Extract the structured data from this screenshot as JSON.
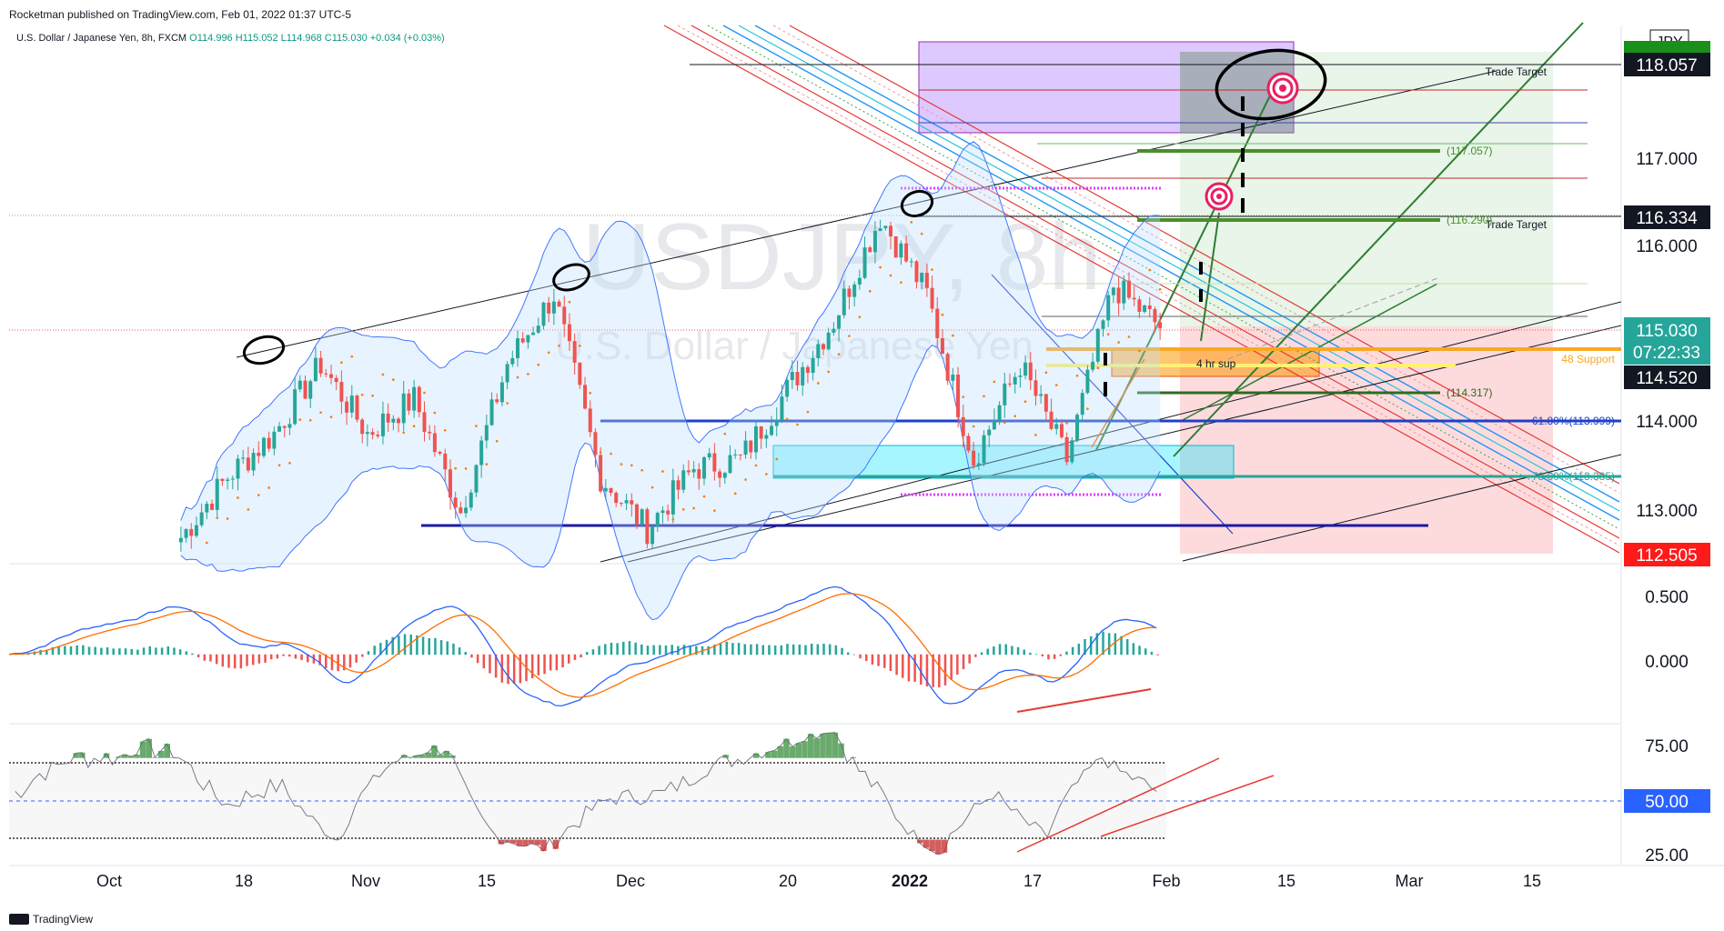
{
  "header": {
    "published": "Rocketman published on TradingView.com, Feb 01, 2022 01:37 UTC-5",
    "symbol_line": "U.S. Dollar / Japanese Yen, 8h, FXCM",
    "ohlc": "O114.996 H115.052 L114.968 C115.030 +0.034 (+0.03%)"
  },
  "watermark": {
    "symbol": "USDJPY, 8h",
    "name": "U.S. Dollar / Japanese Yen"
  },
  "footer": {
    "brand": "TradingView"
  },
  "colors": {
    "up": "#26a69a",
    "down": "#ef5350",
    "bollinger": "#2962ff",
    "psar": "#f57c00",
    "macd": "#2962ff",
    "signal": "#ff6d00",
    "rsi": "#787b86"
  },
  "price_axis": {
    "currency": "JPY",
    "ticks": [
      "117.000",
      "116.000",
      "114.000",
      "113.000"
    ],
    "labels": {
      "target_high": "118.057",
      "target_mid": "116.334",
      "last_price": "115.030",
      "countdown": "07:22:33",
      "support": "114.520",
      "stop": "112.505"
    }
  },
  "annotations": {
    "trade_target_1": "Trade Target",
    "trade_target_2": "Trade Target",
    "support_4h": "4 hr sup",
    "support_48": "48 Support",
    "level_117": "(117.057)",
    "level_116": "(116.290)",
    "level_1143": "(114.317)",
    "fib_618": "61.80%(113.999)",
    "fib_786": "78.60%(113.385)"
  },
  "macd_axis": {
    "ticks": [
      "0.500",
      "0.000"
    ]
  },
  "rsi_axis": {
    "ticks": [
      "75.00",
      "50.00",
      "25.00"
    ]
  },
  "time_axis": [
    "Oct",
    "18",
    "Nov",
    "15",
    "Dec",
    "20",
    "2022",
    "17",
    "Feb",
    "15",
    "Mar",
    "15"
  ],
  "chart_data": {
    "type": "candlestick",
    "symbol": "USDJPY",
    "timeframe": "8h",
    "x_range": [
      "Sep 2021",
      "Mar 2022"
    ],
    "ylim": [
      112.3,
      118.5
    ],
    "key_levels": [
      118.057,
      117.057,
      116.334,
      116.29,
      115.03,
      114.52,
      114.317,
      113.999,
      113.385,
      112.505
    ],
    "swing_path": [
      {
        "x": "Sep 28",
        "y": 112.6
      },
      {
        "x": "Oct 5",
        "y": 113.3
      },
      {
        "x": "Oct 12",
        "y": 113.8
      },
      {
        "x": "Oct 20",
        "y": 114.6
      },
      {
        "x": "Oct 27",
        "y": 113.8
      },
      {
        "x": "Nov 3",
        "y": 114.2
      },
      {
        "x": "Nov 9",
        "y": 112.9
      },
      {
        "x": "Nov 16",
        "y": 114.6
      },
      {
        "x": "Nov 24",
        "y": 115.4
      },
      {
        "x": "Nov 30",
        "y": 113.3
      },
      {
        "x": "Dec 3",
        "y": 112.7
      },
      {
        "x": "Dec 10",
        "y": 113.4
      },
      {
        "x": "Dec 17",
        "y": 113.5
      },
      {
        "x": "Dec 24",
        "y": 114.3
      },
      {
        "x": "Dec 31",
        "y": 115.1
      },
      {
        "x": "Jan 4",
        "y": 116.3
      },
      {
        "x": "Jan 10",
        "y": 115.4
      },
      {
        "x": "Jan 14",
        "y": 113.5
      },
      {
        "x": "Jan 18",
        "y": 114.6
      },
      {
        "x": "Jan 24",
        "y": 113.5
      },
      {
        "x": "Jan 28",
        "y": 115.5
      },
      {
        "x": "Feb 1",
        "y": 115.03
      }
    ],
    "macd": {
      "ylim": [
        -0.6,
        0.8
      ]
    },
    "rsi": {
      "ylim": [
        20,
        85
      ],
      "overbought": 70,
      "mid": 50,
      "oversold": 30
    }
  }
}
